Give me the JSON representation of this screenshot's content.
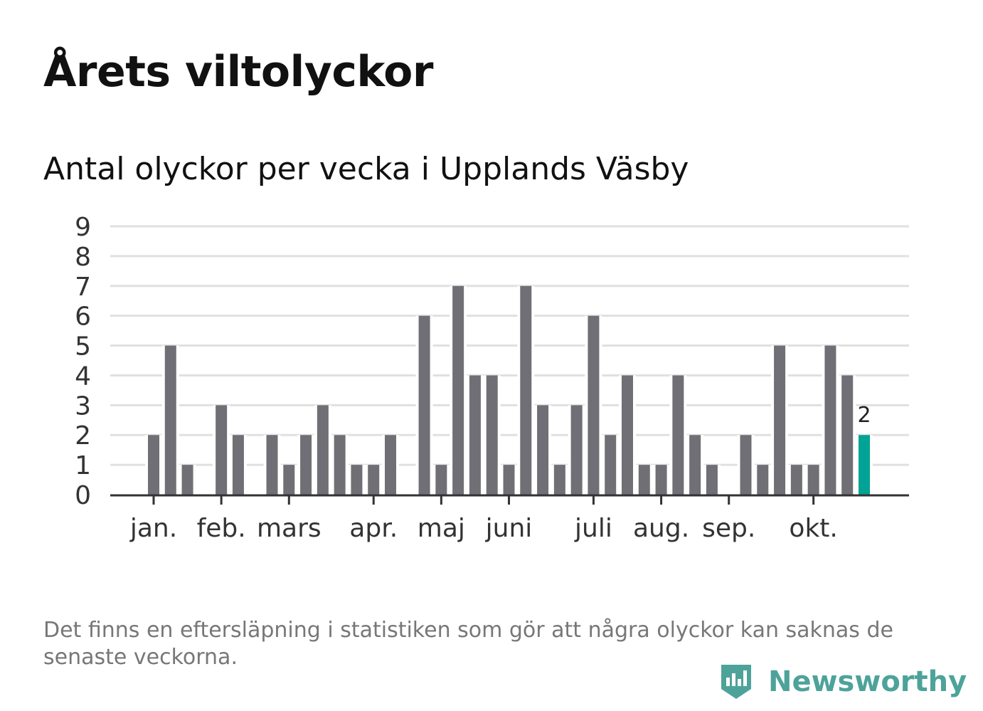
{
  "title": "Årets viltolyckor",
  "chart_data": {
    "type": "bar",
    "title": "Antal olyckor per vecka i Upplands Väsby",
    "xlabel": "",
    "ylabel": "",
    "ylim": [
      0,
      9
    ],
    "yticks": [
      0,
      1,
      2,
      3,
      4,
      5,
      6,
      7,
      8,
      9
    ],
    "grid": true,
    "values": [
      2,
      5,
      1,
      0,
      3,
      2,
      0,
      2,
      1,
      2,
      3,
      2,
      1,
      1,
      2,
      0,
      6,
      1,
      7,
      4,
      4,
      1,
      7,
      3,
      1,
      3,
      6,
      2,
      4,
      1,
      1,
      4,
      2,
      1,
      0,
      2,
      1,
      5,
      1,
      1,
      5,
      4,
      2
    ],
    "month_ticks": [
      {
        "label": "jan.",
        "week_index": 0
      },
      {
        "label": "feb.",
        "week_index": 4
      },
      {
        "label": "mars",
        "week_index": 8
      },
      {
        "label": "apr.",
        "week_index": 13
      },
      {
        "label": "maj",
        "week_index": 17
      },
      {
        "label": "juni",
        "week_index": 21
      },
      {
        "label": "juli",
        "week_index": 26
      },
      {
        "label": "aug.",
        "week_index": 30
      },
      {
        "label": "sep.",
        "week_index": 34
      },
      {
        "label": "okt.",
        "week_index": 39
      }
    ],
    "highlight_label": "2",
    "colors": {
      "bar": "#706f75",
      "highlight": "#00a396",
      "grid": "#e0e0e0",
      "axis": "#333333"
    }
  },
  "footnote": "Det finns en eftersläpning i statistiken som gör att några olyckor kan saknas de senaste veckorna.",
  "logo": "Newsworthy"
}
